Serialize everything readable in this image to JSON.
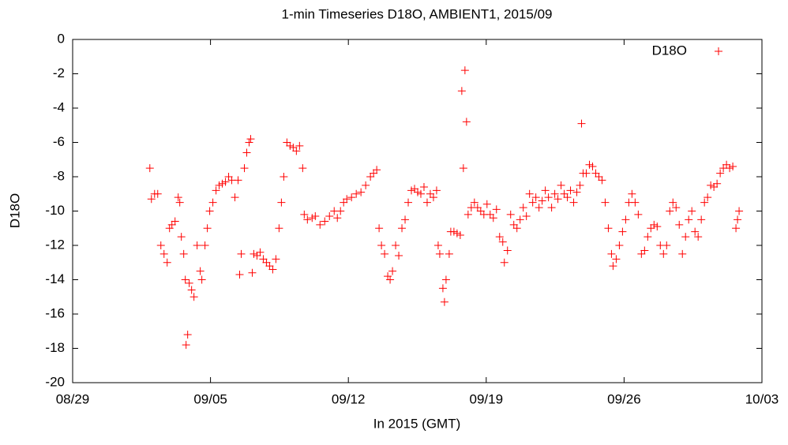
{
  "chart_data": {
    "type": "scatter",
    "title": "1-min Timeseries D18O, AMBIENT1, 2015/09",
    "xlabel": "In 2015 (GMT)",
    "ylabel": "D18O",
    "xlim": [
      0,
      35
    ],
    "xticks": [
      {
        "value": 0,
        "label": "08/29"
      },
      {
        "value": 7,
        "label": "09/05"
      },
      {
        "value": 14,
        "label": "09/12"
      },
      {
        "value": 21,
        "label": "09/19"
      },
      {
        "value": 28,
        "label": "09/26"
      },
      {
        "value": 35,
        "label": "10/03"
      }
    ],
    "ylim": [
      -20,
      0
    ],
    "yticks": [
      -20,
      -18,
      -16,
      -14,
      -12,
      -10,
      -8,
      -6,
      -4,
      -2,
      0
    ],
    "legend": "top-right",
    "series": [
      {
        "name": "D18O",
        "color": "#ff0000",
        "x": [
          3.92,
          4.0,
          4.16,
          4.32,
          4.48,
          4.64,
          4.8,
          4.92,
          5.04,
          5.2,
          5.36,
          5.44,
          5.52,
          5.64,
          5.72,
          5.76,
          5.84,
          5.92,
          6.04,
          6.16,
          6.32,
          6.48,
          6.56,
          6.72,
          6.84,
          6.96,
          7.12,
          7.28,
          7.44,
          7.6,
          7.76,
          7.92,
          8.08,
          8.24,
          8.4,
          8.48,
          8.56,
          8.72,
          8.84,
          8.96,
          9.04,
          9.12,
          9.2,
          9.36,
          9.52,
          9.68,
          9.84,
          10.0,
          10.16,
          10.32,
          10.48,
          10.6,
          10.72,
          10.88,
          11.04,
          11.2,
          11.36,
          11.52,
          11.68,
          11.76,
          11.92,
          12.16,
          12.32,
          12.56,
          12.8,
          13.04,
          13.28,
          13.44,
          13.6,
          13.76,
          13.92,
          14.16,
          14.4,
          14.64,
          14.88,
          15.12,
          15.28,
          15.44,
          15.56,
          15.68,
          15.84,
          16.0,
          16.12,
          16.24,
          16.4,
          16.56,
          16.72,
          16.88,
          17.04,
          17.2,
          17.36,
          17.52,
          17.68,
          17.84,
          18.0,
          18.16,
          18.32,
          18.48,
          18.56,
          18.64,
          18.8,
          18.88,
          18.96,
          19.12,
          19.2,
          19.36,
          19.52,
          19.68,
          19.76,
          19.84,
          19.92,
          20.0,
          20.08,
          20.24,
          20.4,
          20.56,
          20.72,
          20.88,
          21.04,
          21.2,
          21.36,
          21.52,
          21.68,
          21.84,
          21.92,
          22.08,
          22.24,
          22.4,
          22.56,
          22.72,
          22.88,
          23.04,
          23.2,
          23.36,
          23.52,
          23.68,
          23.84,
          24.0,
          24.16,
          24.32,
          24.48,
          24.64,
          24.8,
          24.96,
          25.12,
          25.28,
          25.44,
          25.6,
          25.76,
          25.84,
          25.92,
          26.08,
          26.24,
          26.4,
          26.56,
          26.72,
          26.88,
          27.04,
          27.2,
          27.36,
          27.44,
          27.6,
          27.76,
          27.92,
          28.08,
          28.24,
          28.4,
          28.56,
          28.72,
          28.88,
          29.04,
          29.2,
          29.36,
          29.52,
          29.68,
          29.84,
          30.0,
          30.16,
          30.32,
          30.48,
          30.64,
          30.8,
          30.96,
          31.12,
          31.28,
          31.44,
          31.6,
          31.76,
          31.92,
          32.08,
          32.24,
          32.4,
          32.56,
          32.72,
          32.88,
          33.04,
          33.2,
          33.36,
          33.52,
          33.68,
          33.76,
          33.84
        ],
        "values": [
          -7.5,
          -9.3,
          -9.0,
          -9.0,
          -12,
          -12.5,
          -13,
          -11,
          -10.8,
          -10.6,
          -9.2,
          -9.5,
          -11.5,
          -12.5,
          -14,
          -17.8,
          -17.2,
          -14.2,
          -14.6,
          -15,
          -12,
          -13.5,
          -14,
          -12,
          -11,
          -10,
          -9.5,
          -8.8,
          -8.5,
          -8.4,
          -8.3,
          -8,
          -8.2,
          -9.2,
          -8.2,
          -13.7,
          -12.5,
          -7.5,
          -6.6,
          -6,
          -5.8,
          -13.6,
          -12.5,
          -12.6,
          -12.4,
          -12.8,
          -13,
          -13.2,
          -13.4,
          -12.8,
          -11,
          -9.5,
          -8,
          -6,
          -6.2,
          -6.3,
          -6.5,
          -6.2,
          -7.5,
          -10.2,
          -10.5,
          -10.4,
          -10.3,
          -10.8,
          -10.6,
          -10.3,
          -10,
          -10.4,
          -10,
          -9.5,
          -9.3,
          -9.2,
          -9,
          -8.9,
          -8.5,
          -8,
          -7.8,
          -7.6,
          -11,
          -12,
          -12.5,
          -13.8,
          -14,
          -13.5,
          -12,
          -12.6,
          -11,
          -10.5,
          -9.5,
          -8.8,
          -8.7,
          -8.9,
          -9,
          -8.6,
          -9.5,
          -9,
          -9.2,
          -8.8,
          -12,
          -12.5,
          -14.5,
          -15.3,
          -14,
          -12.5,
          -11.2,
          -11.2,
          -11.3,
          -11.4,
          -3,
          -7.5,
          -1.8,
          -4.8,
          -10.2,
          -9.8,
          -9.5,
          -9.8,
          -10,
          -10.2,
          -9.6,
          -10.2,
          -10.4,
          -9.9,
          -11.5,
          -11.8,
          -13,
          -12.3,
          -10.2,
          -10.8,
          -11,
          -10.5,
          -9.8,
          -10.3,
          -9,
          -9.5,
          -9.2,
          -9.8,
          -9.4,
          -8.8,
          -9.2,
          -9.8,
          -9,
          -9.3,
          -8.5,
          -9,
          -9.2,
          -8.8,
          -9.5,
          -8.9,
          -8.5,
          -4.9,
          -7.8,
          -7.8,
          -7.3,
          -7.4,
          -7.8,
          -8,
          -8.2,
          -9.5,
          -11,
          -12.5,
          -13.2,
          -12.8,
          -12,
          -11.2,
          -10.5,
          -9.5,
          -9,
          -9.5,
          -10.2,
          -12.5,
          -12.3,
          -11.5,
          -11,
          -10.8,
          -10.9,
          -12,
          -12.5,
          -12,
          -10,
          -9.5,
          -9.8,
          -10.8,
          -12.5,
          -11.5,
          -10.5,
          -10,
          -11.2,
          -11.5,
          -10.5,
          -9.5,
          -9.2,
          -8.5,
          -8.6,
          -8.4,
          -7.8,
          -7.5,
          -7.3,
          -7.5,
          -7.4,
          -11,
          -10.5,
          -10
        ]
      }
    ]
  }
}
